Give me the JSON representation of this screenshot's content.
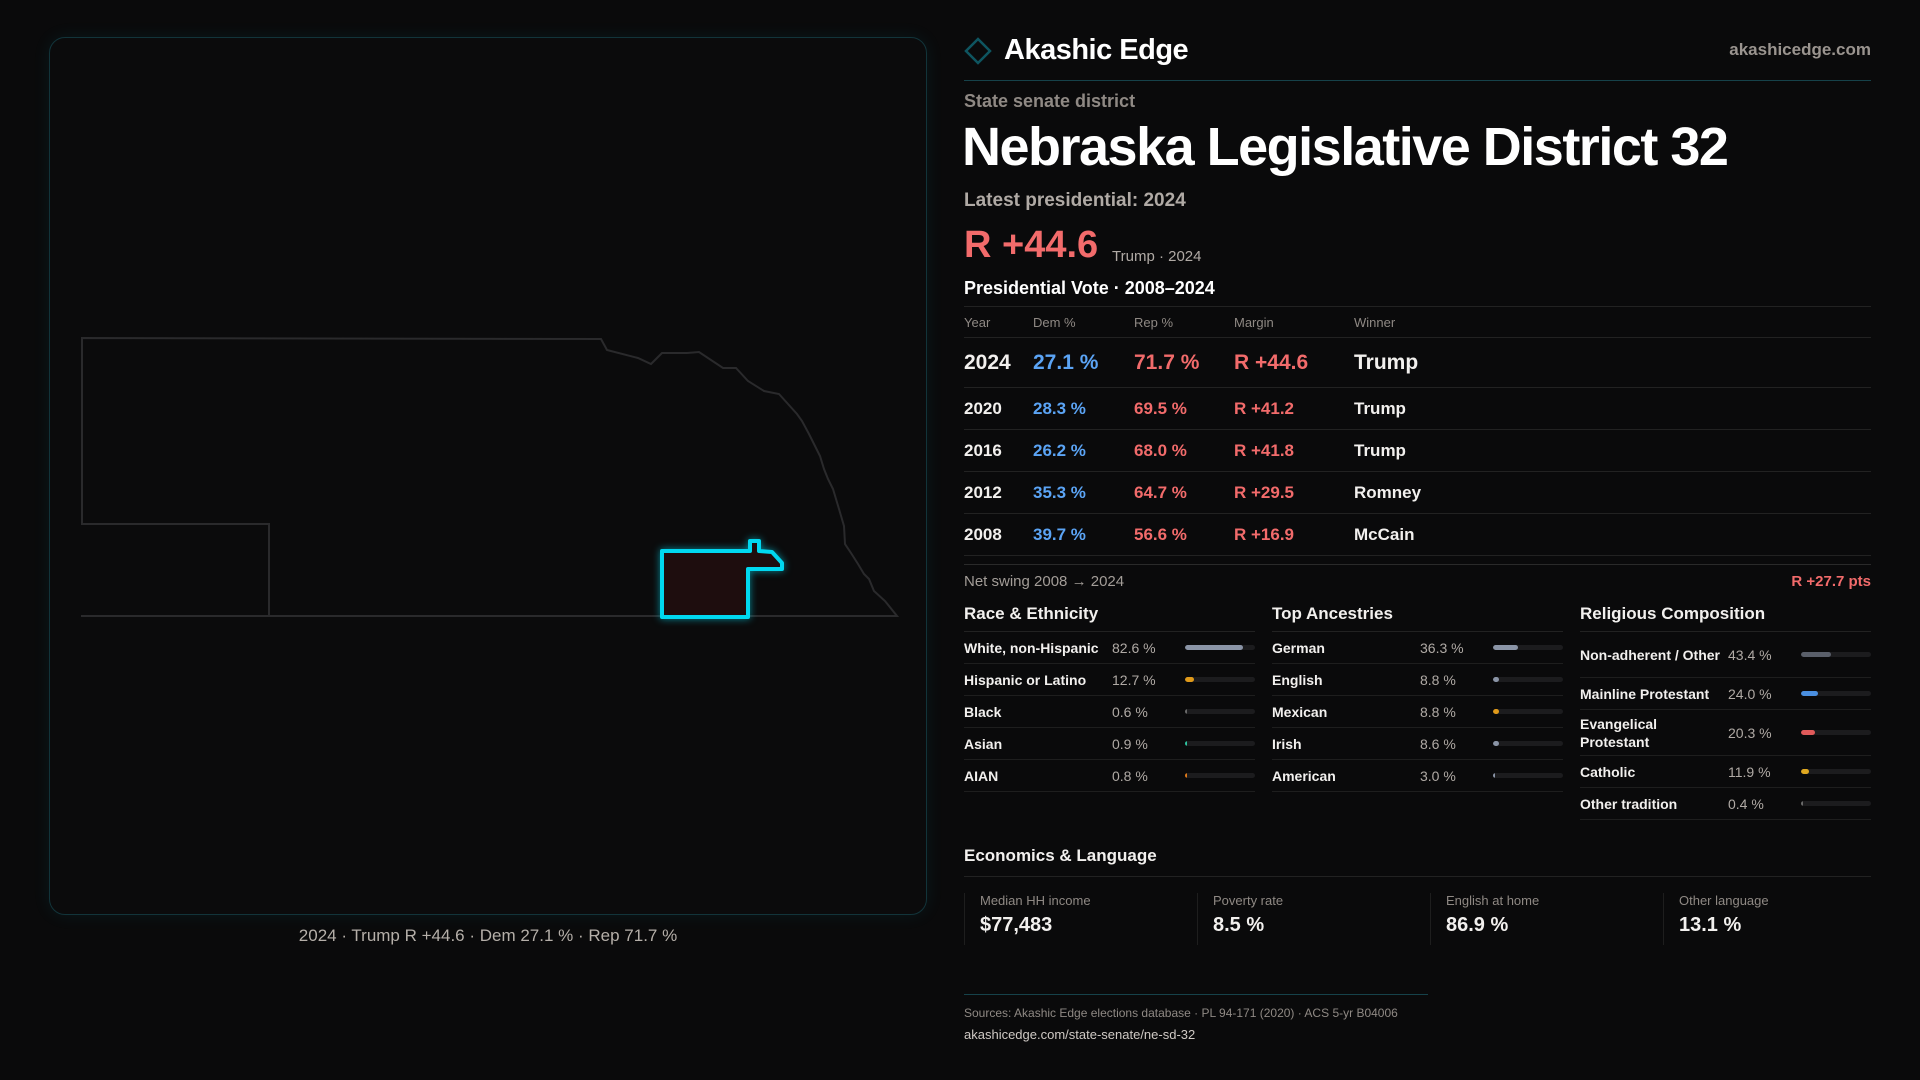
{
  "brand": {
    "name": "Akashic Edge",
    "site": "akashicedge.com",
    "icon": "diamond-icon"
  },
  "district": {
    "kind": "State senate district",
    "title": "Nebraska Legislative District 32",
    "latest": "Latest presidential: 2024",
    "margin": "R +44.6",
    "margin_sub": "Trump · 2024"
  },
  "map": {
    "caption": "2024 · Trump R +44.6 · Dem 27.1 % · Rep 71.7 %",
    "highlight_color": "#00d8f0"
  },
  "pres": {
    "title": "Presidential Vote · 2008–2024",
    "headers": [
      "Year",
      "Dem %",
      "Rep %",
      "Margin",
      "Winner"
    ],
    "rows": [
      [
        "2024",
        "27.1 %",
        "71.7 %",
        "R +44.6",
        "Trump"
      ],
      [
        "2020",
        "28.3 %",
        "69.5 %",
        "R +41.2",
        "Trump"
      ],
      [
        "2016",
        "26.2 %",
        "68.0 %",
        "R +41.8",
        "Trump"
      ],
      [
        "2012",
        "35.3 %",
        "64.7 %",
        "R +29.5",
        "Romney"
      ],
      [
        "2008",
        "39.7 %",
        "56.6 %",
        "R +16.9",
        "McCain"
      ]
    ],
    "swing_label": "Net swing 2008 → 2024",
    "swing_value": "R +27.7 pts"
  },
  "sections": [
    {
      "title": "Race & Ethnicity",
      "rows": [
        {
          "label": "White, non-Hispanic",
          "value": "82.6 %",
          "pct": 82.6,
          "color": "#8a94a6"
        },
        {
          "label": "Hispanic or Latino",
          "value": "12.7 %",
          "pct": 12.7,
          "color": "#e09a1a"
        },
        {
          "label": "Black",
          "value": "0.6 %",
          "pct": 0.6,
          "color": "#6a6a6a"
        },
        {
          "label": "Asian",
          "value": "0.9 %",
          "pct": 0.9,
          "color": "#2ec4a0"
        },
        {
          "label": "AIAN",
          "value": "0.8 %",
          "pct": 0.8,
          "color": "#e07a1a"
        }
      ]
    },
    {
      "title": "Top Ancestries",
      "rows": [
        {
          "label": "German",
          "value": "36.3 %",
          "pct": 36.3,
          "color": "#8a94a6"
        },
        {
          "label": "English",
          "value": "8.8 %",
          "pct": 8.8,
          "color": "#8a94a6"
        },
        {
          "label": "Mexican",
          "value": "8.8 %",
          "pct": 8.8,
          "color": "#e09a1a"
        },
        {
          "label": "Irish",
          "value": "8.6 %",
          "pct": 8.6,
          "color": "#8a94a6"
        },
        {
          "label": "American",
          "value": "3.0 %",
          "pct": 3.0,
          "color": "#8a94a6"
        }
      ]
    },
    {
      "title": "Religious Composition",
      "rows": [
        {
          "label": "Non-adherent / Other",
          "value": "43.4 %",
          "pct": 43.4,
          "color": "#5a5f6a"
        },
        {
          "label": "Mainline Protestant",
          "value": "24.0 %",
          "pct": 24.0,
          "color": "#4a8fe0"
        },
        {
          "label": "Evangelical Protestant",
          "value": "20.3 %",
          "pct": 20.3,
          "color": "#e05a5a"
        },
        {
          "label": "Catholic",
          "value": "11.9 %",
          "pct": 11.9,
          "color": "#e0a820"
        },
        {
          "label": "Other tradition",
          "value": "0.4 %",
          "pct": 0.4,
          "color": "#6a6a6a"
        }
      ]
    }
  ],
  "econ": {
    "title": "Economics & Language",
    "cards": [
      {
        "label": "Median HH income",
        "value": "$77,483"
      },
      {
        "label": "Poverty rate",
        "value": "8.5 %"
      },
      {
        "label": "English at home",
        "value": "86.9 %"
      },
      {
        "label": "Other language",
        "value": "13.1 %"
      }
    ]
  },
  "footer": {
    "sources": "Sources: Akashic Edge elections database · PL 94-171 (2020) · ACS 5-yr B04006",
    "url": "akashicedge.com/state-senate/ne-sd-32"
  },
  "colors": {
    "dem": "#5ba4f5",
    "rep": "#f26b6b",
    "accent": "#00d8f0"
  }
}
